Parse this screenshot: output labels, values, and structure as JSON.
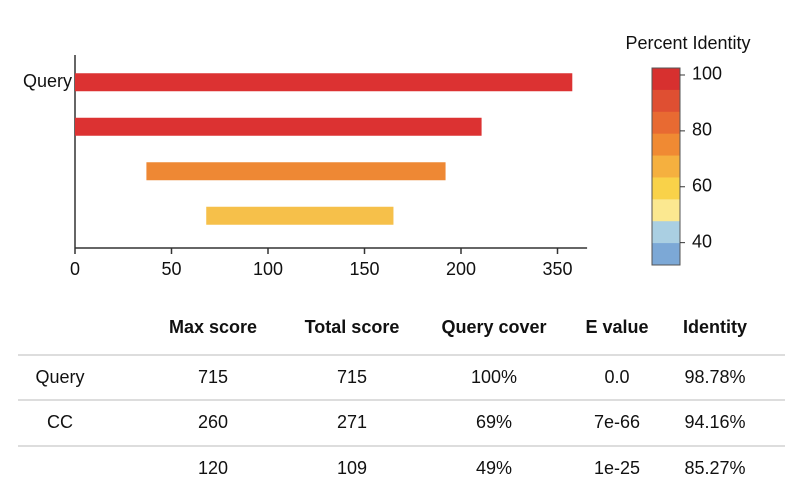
{
  "chart_data": {
    "type": "range_bar",
    "categories": [
      "Query",
      null,
      null,
      null
    ],
    "starts": [
      0,
      0,
      37,
      68
    ],
    "ends": [
      373,
      232,
      192,
      165
    ],
    "colors": [
      "#dc3232",
      "#dc3232",
      "#ee8834",
      "#f6c04a"
    ],
    "xlim": [
      0,
      396
    ],
    "xticks": [
      0,
      50,
      100,
      150,
      200,
      350
    ],
    "colorbar": {
      "title": "Percent Identity",
      "ylim": [
        32,
        102.5
      ],
      "yticks": [
        40,
        60,
        80,
        100
      ],
      "colors": [
        "#d7302f",
        "#df4f32",
        "#e86a32",
        "#f08a33",
        "#f5b03f",
        "#f9d249",
        "#fbe890",
        "#aacfe2",
        "#7ca8d6"
      ]
    }
  },
  "table": {
    "header": [
      null,
      "Max score",
      "Total score",
      "Query cover",
      "E value",
      "Identity"
    ],
    "rows": [
      [
        "Query",
        "715",
        "715",
        "100%",
        "0.0",
        "98.78%"
      ],
      [
        "CC",
        "260",
        "271",
        "69%",
        "7e-66",
        "94.16%"
      ],
      [
        null,
        "120",
        "109",
        "49%",
        "1e-25",
        "85.27%"
      ]
    ]
  }
}
